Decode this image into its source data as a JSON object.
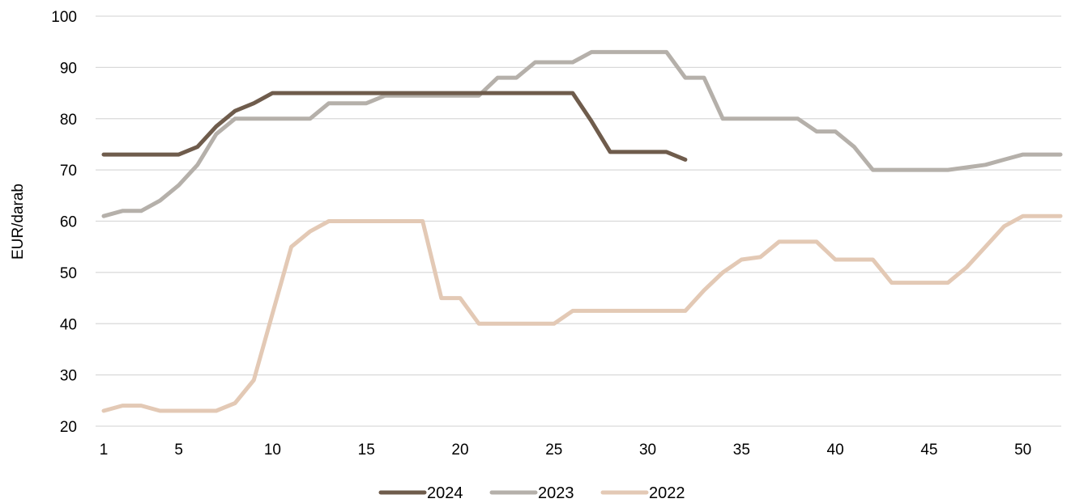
{
  "chart_data": {
    "type": "line",
    "ylabel": "EUR/darab",
    "xlabel": "",
    "ylim": [
      20,
      100
    ],
    "xlim": [
      1,
      52
    ],
    "yticks": [
      20,
      30,
      40,
      50,
      60,
      70,
      80,
      90,
      100
    ],
    "xticks": [
      1,
      5,
      10,
      15,
      20,
      25,
      30,
      35,
      40,
      45,
      50
    ],
    "grid": "horizontal",
    "legend_position": "bottom",
    "series": [
      {
        "name": "2024",
        "color": "#6f5c4c",
        "x": [
          1,
          2,
          3,
          4,
          5,
          6,
          7,
          8,
          9,
          10,
          11,
          12,
          13,
          14,
          15,
          16,
          17,
          18,
          19,
          20,
          21,
          22,
          23,
          24,
          25,
          26,
          27,
          28,
          29,
          30,
          31,
          32
        ],
        "values": [
          73,
          73,
          73,
          73,
          73,
          74.5,
          78.5,
          81.5,
          83,
          85,
          85,
          85,
          85,
          85,
          85,
          85,
          85,
          85,
          85,
          85,
          85,
          85,
          85,
          85,
          85,
          85,
          79.5,
          73.5,
          73.5,
          73.5,
          73.5,
          72
        ]
      },
      {
        "name": "2023",
        "color": "#b5b0aa",
        "x": [
          1,
          2,
          3,
          4,
          5,
          6,
          7,
          8,
          9,
          10,
          11,
          12,
          13,
          14,
          15,
          16,
          17,
          18,
          19,
          20,
          21,
          22,
          23,
          24,
          25,
          26,
          27,
          28,
          29,
          30,
          31,
          32,
          33,
          34,
          35,
          36,
          37,
          38,
          39,
          40,
          41,
          42,
          43,
          44,
          45,
          46,
          47,
          48,
          49,
          50,
          51,
          52
        ],
        "values": [
          61,
          62,
          62,
          64,
          67,
          71,
          77,
          80,
          80,
          80,
          80,
          80,
          83,
          83,
          83,
          84.5,
          84.5,
          84.5,
          84.5,
          84.5,
          84.5,
          88,
          88,
          91,
          91,
          91,
          93,
          93,
          93,
          93,
          93,
          88,
          88,
          80,
          80,
          80,
          80,
          80,
          77.5,
          77.5,
          74.5,
          70,
          70,
          70,
          70,
          70,
          70.5,
          71,
          72,
          73,
          73,
          73
        ]
      },
      {
        "name": "2022",
        "color": "#e3c9b5",
        "x": [
          1,
          2,
          3,
          4,
          5,
          6,
          7,
          8,
          9,
          10,
          11,
          12,
          13,
          14,
          15,
          16,
          17,
          18,
          19,
          20,
          21,
          22,
          23,
          24,
          25,
          26,
          27,
          28,
          29,
          30,
          31,
          32,
          33,
          34,
          35,
          36,
          37,
          38,
          39,
          40,
          41,
          42,
          43,
          44,
          45,
          46,
          47,
          48,
          49,
          50,
          51,
          52
        ],
        "values": [
          23,
          24,
          24,
          23,
          23,
          23,
          23,
          24.5,
          29,
          42,
          55,
          58,
          60,
          60,
          60,
          60,
          60,
          60,
          45,
          45,
          40,
          40,
          40,
          40,
          40,
          42.5,
          42.5,
          42.5,
          42.5,
          42.5,
          42.5,
          42.5,
          46.5,
          50,
          52.5,
          53,
          56,
          56,
          56,
          52.5,
          52.5,
          52.5,
          48,
          48,
          48,
          48,
          51,
          55,
          59,
          61,
          61,
          61
        ]
      }
    ]
  }
}
